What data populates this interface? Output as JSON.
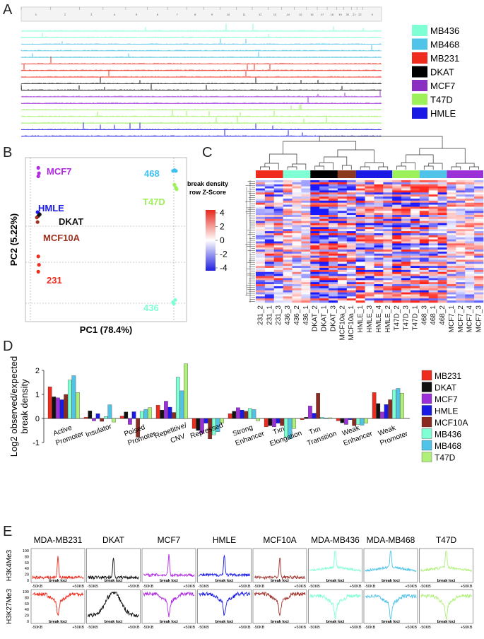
{
  "panels": {
    "a": "A",
    "b": "B",
    "c": "C",
    "d": "D",
    "e": "E"
  },
  "chart_data": [
    {
      "panel": "A",
      "type": "line",
      "description_free": true,
      "chromosome_ticks": [
        "1",
        "2",
        "3",
        "4",
        "5",
        "6",
        "7",
        "8",
        "9",
        "10",
        "11",
        "12",
        "13",
        "14",
        "15",
        "16",
        "17",
        "18",
        "19",
        "20",
        "21",
        "22",
        "X"
      ],
      "tracks": [
        {
          "cell": "MB436",
          "color": "#7fffd4"
        },
        {
          "cell": "MB436",
          "color": "#7fffd4"
        },
        {
          "cell": "MB468",
          "color": "#4fc3e8"
        },
        {
          "cell": "MB468",
          "color": "#4fc3e8"
        },
        {
          "cell": "MB468",
          "color": "#4fc3e8"
        },
        {
          "cell": "MB231",
          "color": "#ef2b1d"
        },
        {
          "cell": "MB231",
          "color": "#ef2b1d"
        },
        {
          "cell": "MB231",
          "color": "#ef2b1d"
        },
        {
          "cell": "DKAT",
          "color": "#111111"
        },
        {
          "cell": "DKAT",
          "color": "#111111"
        },
        {
          "cell": "MCF7",
          "color": "#9b30d9"
        },
        {
          "cell": "MCF7",
          "color": "#9b30d9"
        },
        {
          "cell": "T47D",
          "color": "#9cf05a"
        },
        {
          "cell": "T47D",
          "color": "#9cf05a"
        },
        {
          "cell": "T47D",
          "color": "#9cf05a"
        },
        {
          "cell": "HMLE",
          "color": "#1a1ae6"
        },
        {
          "cell": "HMLE",
          "color": "#1a1ae6"
        }
      ],
      "legend": [
        {
          "label": "MB436",
          "color": "#7fffd4"
        },
        {
          "label": "MB468",
          "color": "#4fc3e8"
        },
        {
          "label": "MB231",
          "color": "#ef2b1d"
        },
        {
          "label": "DKAT",
          "color": "#000000"
        },
        {
          "label": "MCF7",
          "color": "#8a2fc2"
        },
        {
          "label": "T47D",
          "color": "#9cf05a"
        },
        {
          "label": "HMLE",
          "color": "#1a1ae6"
        }
      ]
    },
    {
      "panel": "B",
      "type": "scatter",
      "xlabel": "PC1 (78.4%)",
      "ylabel": "PC2 (5.22%)",
      "groups": [
        {
          "label": "MCF7",
          "color": "#b02be0",
          "points": [
            [
              -0.92,
              0.94
            ],
            [
              -0.91,
              0.87
            ],
            [
              -0.92,
              0.83
            ]
          ]
        },
        {
          "label": "HMLE",
          "color": "#1a1ae6",
          "points": [
            [
              -0.93,
              0.36
            ],
            [
              -0.91,
              0.34
            ]
          ]
        },
        {
          "label": "DKAT",
          "color": "#111111",
          "points": [
            [
              -0.92,
              0.31
            ],
            [
              -0.9,
              0.33
            ]
          ]
        },
        {
          "label": "MCF10A",
          "color": "#a0301f",
          "points": [
            [
              -0.94,
              0.29
            ],
            [
              -0.93,
              0.23
            ]
          ]
        },
        {
          "label": "231",
          "color": "#ef2b1d",
          "points": [
            [
              -0.92,
              -0.22
            ],
            [
              -0.91,
              -0.33
            ],
            [
              -0.92,
              -0.42
            ]
          ]
        },
        {
          "label": "468",
          "color": "#3ec0ee",
          "points": [
            [
              0.95,
              0.9
            ],
            [
              0.97,
              0.91
            ],
            [
              0.99,
              0.9
            ]
          ]
        },
        {
          "label": "T47D",
          "color": "#9cf05a",
          "points": [
            [
              0.97,
              0.72
            ],
            [
              0.99,
              0.68
            ],
            [
              1.0,
              0.66
            ]
          ]
        },
        {
          "label": "436",
          "color": "#7fffd4",
          "points": [
            [
              0.95,
              -0.82
            ],
            [
              0.96,
              -0.84
            ],
            [
              0.98,
              -0.79
            ]
          ]
        }
      ]
    },
    {
      "panel": "C",
      "type": "heatmap",
      "colorbar_title": [
        "break density",
        "row Z-Score"
      ],
      "colorbar_ticks": [
        "4",
        "2",
        "0",
        "-2",
        "-4"
      ],
      "columns": [
        "231_2",
        "231_1",
        "231_3",
        "436_3",
        "436_2",
        "436_1",
        "DKAT_2",
        "DKAT_1",
        "DKAT_3",
        "MCF10a_2",
        "MCF10a_1",
        "HMLE_1",
        "HMLE_3",
        "HMLE_4",
        "HMLE_2",
        "T47D_2",
        "T47D_3",
        "T47D_1",
        "468_3",
        "468_1",
        "468_2",
        "MCF7_1",
        "MCF7_2",
        "MCF7_4",
        "MCF7_3"
      ],
      "column_groups": [
        {
          "color": "#ef2b1d",
          "span": 3
        },
        {
          "color": "#7fffd4",
          "span": 3
        },
        {
          "color": "#000000",
          "span": 3
        },
        {
          "color": "#8b3a1f",
          "span": 2
        },
        {
          "color": "#1a1ae6",
          "span": 4
        },
        {
          "color": "#9cf05a",
          "span": 3
        },
        {
          "color": "#4fc3e8",
          "span": 3
        },
        {
          "color": "#9b30d9",
          "span": 4
        }
      ]
    },
    {
      "panel": "D",
      "type": "bar",
      "ylabel": [
        "Log2 observed/expected",
        "break density"
      ],
      "ylim": [
        -1,
        2
      ],
      "yticks": [
        "2",
        "1",
        "0",
        "-1"
      ],
      "categories": [
        [
          "Active",
          "Promoter"
        ],
        [
          "Insulator"
        ],
        [
          "Poised",
          "Promoter"
        ],
        [
          "Repetitive/",
          "CNV"
        ],
        [
          "Repressed"
        ],
        [
          "Strong",
          "Enhancer"
        ],
        [
          "Txn",
          "Elongation"
        ],
        [
          "Txn",
          "Transition"
        ],
        [
          "Weak",
          "Enhancer"
        ],
        [
          "Weak",
          "Promoter"
        ]
      ],
      "series": [
        {
          "name": "MB231",
          "color": "#ef2b1d",
          "values": [
            1.32,
            0.05,
            0.1,
            0.55,
            -0.42,
            0.2,
            -0.35,
            -0.05,
            -0.1,
            1.08
          ]
        },
        {
          "name": "DKAT",
          "color": "#111111",
          "values": [
            0.9,
            0.32,
            0.27,
            0.35,
            -0.5,
            0.3,
            -0.3,
            0.05,
            -0.18,
            0.62
          ]
        },
        {
          "name": "MCF7",
          "color": "#9b30d9",
          "values": [
            0.86,
            -0.1,
            -0.25,
            0.72,
            -0.62,
            0.45,
            -0.35,
            0.52,
            -0.25,
            0.27
          ]
        },
        {
          "name": "HMLE",
          "color": "#1a1ae6",
          "values": [
            0.78,
            0.2,
            0.28,
            0.47,
            -0.2,
            0.35,
            -0.2,
            0.22,
            -0.05,
            0.58
          ]
        },
        {
          "name": "MCF10A",
          "color": "#8b2a20",
          "values": [
            1.0,
            -0.12,
            -0.78,
            0.25,
            -0.85,
            0.3,
            -0.3,
            1.05,
            -0.3,
            0.78
          ]
        },
        {
          "name": "MB436",
          "color": "#7fffd4",
          "values": [
            1.6,
            0.08,
            0.3,
            1.72,
            -0.68,
            0.42,
            -0.8,
            0.05,
            -0.25,
            1.18
          ]
        },
        {
          "name": "MB468",
          "color": "#4fc3e8",
          "values": [
            1.78,
            0.57,
            0.38,
            1.15,
            -0.55,
            0.37,
            -0.85,
            0.02,
            -0.28,
            1.25
          ]
        },
        {
          "name": "T47D",
          "color": "#b0f07a",
          "values": [
            1.08,
            -0.15,
            0.45,
            2.27,
            -0.2,
            -0.1,
            -0.42,
            0.03,
            -0.2,
            1.05
          ]
        }
      ]
    },
    {
      "panel": "E",
      "type": "line",
      "rows": [
        "H3K4Me3",
        "H3K27Me3"
      ],
      "cells": [
        {
          "label": "MDA-MB231",
          "color": "#ef2b1d"
        },
        {
          "label": "DKAT",
          "color": "#111111"
        },
        {
          "label": "MCF7",
          "color": "#b02be0"
        },
        {
          "label": "HMLE",
          "color": "#1a1ae6"
        },
        {
          "label": "MCF10A",
          "color": "#a0302a"
        },
        {
          "label": "MDA-MB436",
          "color": "#7fffd4"
        },
        {
          "label": "MDA-MB468",
          "color": "#4fc3e8"
        },
        {
          "label": "T47D",
          "color": "#b0f07a"
        }
      ],
      "yticks": [
        "100",
        "80",
        "60",
        "40",
        "20",
        "0"
      ],
      "ylim": [
        0,
        100
      ],
      "x_left": "-50KB",
      "x_right": "+50KB",
      "x_center": "break loci"
    }
  ]
}
